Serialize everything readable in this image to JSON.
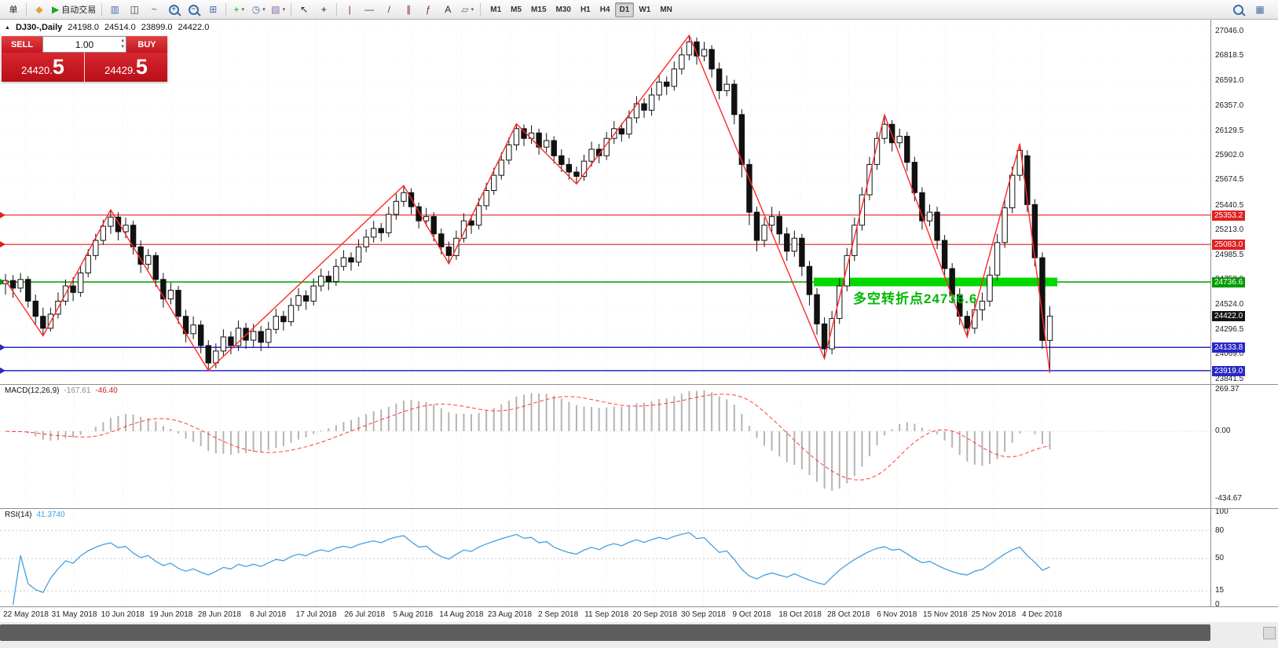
{
  "colors": {
    "line_red": "#e02020",
    "line_green": "#009c00",
    "band_green": "#00d800",
    "line_blue": "#2828c8",
    "badge_black": "#141414",
    "zigzag": "#ff2a2a",
    "macd_hist": "#b4b4b4",
    "macd_signal": "#ff3c3c",
    "rsi_line": "#45a0dc",
    "annotation": "#00b800"
  },
  "toolbar": {
    "dropdown_glyph": "▾",
    "items": [
      {
        "kind": "btn",
        "name": "new-order-button",
        "label": "单"
      },
      {
        "kind": "sep"
      },
      {
        "kind": "btn",
        "name": "mql5-community-icon",
        "glyph": "◆",
        "glyph_color": "#e2a13c"
      },
      {
        "kind": "btn",
        "name": "auto-trading-button",
        "glyph": "▶",
        "glyph_color": "#1fa51f",
        "label": "自动交易"
      },
      {
        "kind": "sep"
      },
      {
        "kind": "btn",
        "name": "bar-chart-mode-icon",
        "glyph": "▥",
        "glyph_color": "#4a6ea9"
      },
      {
        "kind": "btn",
        "name": "candlestick-mode-icon",
        "glyph": "◫",
        "glyph_color": "#333333"
      },
      {
        "kind": "btn",
        "name": "line-chart-mode-icon",
        "glyph": "~",
        "glyph_color": "#2a7a2a"
      },
      {
        "kind": "mag",
        "name": "zoom-in-icon",
        "sign": "+"
      },
      {
        "kind": "mag",
        "name": "zoom-out-icon",
        "sign": "−"
      },
      {
        "kind": "btn",
        "name": "tile-windows-icon",
        "glyph": "⊞",
        "glyph_color": "#4a6ea9"
      },
      {
        "kind": "sep"
      },
      {
        "kind": "btn",
        "name": "indicators-icon",
        "glyph": "+",
        "glyph_color": "#18a018",
        "drop": true
      },
      {
        "kind": "btn",
        "name": "time-periods-icon",
        "glyph": "◷",
        "glyph_color": "#4a6ea9",
        "drop": true
      },
      {
        "kind": "btn",
        "name": "templates-icon",
        "glyph": "▧",
        "glyph_color": "#8a6ea9",
        "drop": true
      },
      {
        "kind": "sep"
      },
      {
        "kind": "btn",
        "name": "cursor-icon",
        "glyph": "↖",
        "glyph_color": "#222222"
      },
      {
        "kind": "btn",
        "name": "crosshair-icon",
        "glyph": "+",
        "glyph_color": "#222222"
      },
      {
        "kind": "sep"
      },
      {
        "kind": "btn",
        "name": "vertical-line-icon",
        "glyph": "|",
        "glyph_color": "#8a2a2a"
      },
      {
        "kind": "btn",
        "name": "horizontal-line-icon",
        "glyph": "—",
        "glyph_color": "#8a2a2a"
      },
      {
        "kind": "btn",
        "name": "trendline-icon",
        "glyph": "/",
        "glyph_color": "#8a2a2a"
      },
      {
        "kind": "btn",
        "name": "equidistant-channel-icon",
        "glyph": "∥",
        "glyph_color": "#8a2a2a"
      },
      {
        "kind": "btn",
        "name": "fibonacci-icon",
        "glyph": "ƒ",
        "glyph_color": "#8a2a2a"
      },
      {
        "kind": "btn",
        "name": "text-tool-icon",
        "glyph": "A",
        "glyph_color": "#222222"
      },
      {
        "kind": "btn",
        "name": "shapes-icon",
        "glyph": "▱",
        "glyph_color": "#4a6ea9",
        "drop": true
      },
      {
        "kind": "sep"
      }
    ],
    "timeframes": [
      {
        "label": "M1"
      },
      {
        "label": "M5"
      },
      {
        "label": "M15"
      },
      {
        "label": "M30"
      },
      {
        "label": "H1"
      },
      {
        "label": "H4"
      },
      {
        "label": "D1",
        "active": true
      },
      {
        "label": "W1"
      },
      {
        "label": "MN"
      }
    ],
    "right_items": [
      {
        "kind": "mag",
        "name": "search-icon",
        "sign": ""
      },
      {
        "kind": "btn",
        "name": "window-layout-icon",
        "glyph": "▦",
        "glyph_color": "#4a6ea9"
      }
    ]
  },
  "symbol_header": {
    "marker": "▲",
    "symbol": "DJ30-,Daily",
    "open": "24198.0",
    "high": "24514.0",
    "low": "23899.0",
    "close": "24422.0"
  },
  "trade_panel": {
    "sell_label": "SELL",
    "buy_label": "BUY",
    "volume": "1.00",
    "spinner_up": "▴",
    "spinner_down": "▾",
    "sell_price_small": "24420.",
    "sell_price_big": "5",
    "buy_price_small": "24429.",
    "buy_price_big": "5"
  },
  "annotation": {
    "text": "多空转折点24736.6"
  },
  "indicators": {
    "macd": {
      "name": "MACD(12,26,9)",
      "main_value": "-167.61",
      "signal_value": "-46.40",
      "axis_labels": [
        "269.37",
        "0.00",
        "-434.67"
      ]
    },
    "rsi": {
      "name": "RSI(14)",
      "value": "41.3740",
      "axis_labels": [
        "100",
        "80",
        "50",
        "15",
        "0"
      ],
      "levels": [
        80,
        50,
        15
      ]
    }
  },
  "chart_data": {
    "type": "candlestick",
    "symbol": "DJ30-",
    "timeframe": "Daily",
    "ohlc_current": {
      "open": 24198.0,
      "high": 24514.0,
      "low": 23899.0,
      "close": 24422.0
    },
    "current_price": {
      "value": 24422.0,
      "label": "24422.0"
    },
    "price_axis": {
      "labels": [
        "27046.0",
        "26818.5",
        "26591.0",
        "26357.0",
        "26129.5",
        "25902.0",
        "25674.5",
        "25440.5",
        "25213.0",
        "24985.5",
        "24758.0",
        "24524.0",
        "24296.5",
        "24069.0",
        "23841.5"
      ]
    },
    "date_axis": {
      "labels": [
        "22 May 2018",
        "31 May 2018",
        "10 Jun 2018",
        "19 Jun 2018",
        "28 Jun 2018",
        "8 Jul 2018",
        "17 Jul 2018",
        "26 Jul 2018",
        "5 Aug 2018",
        "14 Aug 2018",
        "23 Aug 2018",
        "2 Sep 2018",
        "11 Sep 2018",
        "20 Sep 2018",
        "30 Sep 2018",
        "9 Oct 2018",
        "18 Oct 2018",
        "28 Oct 2018",
        "6 Nov 2018",
        "15 Nov 2018",
        "25 Nov 2018",
        "4 Dec 2018"
      ]
    },
    "hlines": [
      {
        "price": 25353.2,
        "label": "25353.2",
        "color": "red"
      },
      {
        "price": 25083.0,
        "label": "25083.0",
        "color": "red"
      },
      {
        "price": 24736.6,
        "label": "24736.6",
        "color": "green",
        "band": {
          "from_index": 108,
          "to_index": 140
        }
      },
      {
        "price": 24133.8,
        "label": "24133.8",
        "color": "blue"
      },
      {
        "price": 23919.0,
        "label": "23919.0",
        "color": "blue"
      }
    ],
    "zigzag": [
      [
        0,
        24750
      ],
      [
        5,
        24240
      ],
      [
        14,
        25402
      ],
      [
        27,
        23920
      ],
      [
        53,
        25625
      ],
      [
        59,
        24905
      ],
      [
        68,
        26195
      ],
      [
        76,
        25640
      ],
      [
        91,
        27010
      ],
      [
        109,
        24030
      ],
      [
        117,
        26277
      ],
      [
        128,
        24230
      ],
      [
        135,
        26012
      ],
      [
        139,
        23899
      ]
    ],
    "candles": [
      [
        24720,
        24810,
        24620,
        24750
      ],
      [
        24750,
        24800,
        24590,
        24680
      ],
      [
        24680,
        24820,
        24640,
        24760
      ],
      [
        24760,
        24790,
        24500,
        24560
      ],
      [
        24560,
        24620,
        24340,
        24420
      ],
      [
        24420,
        24500,
        24240,
        24310
      ],
      [
        24310,
        24500,
        24280,
        24440
      ],
      [
        24440,
        24640,
        24400,
        24560
      ],
      [
        24560,
        24760,
        24520,
        24700
      ],
      [
        24700,
        24780,
        24560,
        24640
      ],
      [
        24640,
        24880,
        24600,
        24820
      ],
      [
        24820,
        25040,
        24780,
        24980
      ],
      [
        24980,
        25180,
        24940,
        25120
      ],
      [
        25120,
        25310,
        25080,
        25250
      ],
      [
        25250,
        25402,
        25180,
        25335
      ],
      [
        25335,
        25380,
        25120,
        25200
      ],
      [
        25200,
        25330,
        25140,
        25260
      ],
      [
        25260,
        25300,
        24990,
        25060
      ],
      [
        25060,
        25120,
        24820,
        24900
      ],
      [
        24900,
        25040,
        24850,
        24980
      ],
      [
        24980,
        25010,
        24690,
        24760
      ],
      [
        24760,
        24820,
        24500,
        24580
      ],
      [
        24580,
        24730,
        24530,
        24660
      ],
      [
        24660,
        24700,
        24350,
        24420
      ],
      [
        24420,
        24480,
        24180,
        24260
      ],
      [
        24260,
        24420,
        24210,
        24340
      ],
      [
        24340,
        24380,
        24080,
        24150
      ],
      [
        24150,
        24200,
        23920,
        23990
      ],
      [
        23990,
        24170,
        23940,
        24100
      ],
      [
        24100,
        24300,
        24050,
        24230
      ],
      [
        24230,
        24280,
        24070,
        24150
      ],
      [
        24150,
        24380,
        24100,
        24310
      ],
      [
        24310,
        24360,
        24120,
        24200
      ],
      [
        24200,
        24350,
        24140,
        24280
      ],
      [
        24280,
        24330,
        24100,
        24180
      ],
      [
        24180,
        24370,
        24130,
        24300
      ],
      [
        24300,
        24490,
        24260,
        24420
      ],
      [
        24420,
        24470,
        24290,
        24370
      ],
      [
        24370,
        24590,
        24330,
        24520
      ],
      [
        24520,
        24680,
        24470,
        24610
      ],
      [
        24610,
        24660,
        24480,
        24560
      ],
      [
        24560,
        24770,
        24520,
        24700
      ],
      [
        24700,
        24860,
        24650,
        24790
      ],
      [
        24790,
        24840,
        24660,
        24740
      ],
      [
        24740,
        24950,
        24700,
        24880
      ],
      [
        24880,
        25030,
        24840,
        24960
      ],
      [
        24960,
        25010,
        24840,
        24920
      ],
      [
        24920,
        25130,
        24880,
        25060
      ],
      [
        25060,
        25220,
        25010,
        25150
      ],
      [
        25150,
        25300,
        25100,
        25230
      ],
      [
        25230,
        25280,
        25110,
        25190
      ],
      [
        25190,
        25430,
        25150,
        25360
      ],
      [
        25360,
        25550,
        25310,
        25480
      ],
      [
        25480,
        25625,
        25430,
        25560
      ],
      [
        25560,
        25600,
        25360,
        25430
      ],
      [
        25430,
        25470,
        25230,
        25300
      ],
      [
        25300,
        25420,
        25250,
        25340
      ],
      [
        25340,
        25380,
        25110,
        25180
      ],
      [
        25180,
        25230,
        24990,
        25060
      ],
      [
        25060,
        25110,
        24905,
        24980
      ],
      [
        24980,
        25210,
        24940,
        25140
      ],
      [
        25140,
        25370,
        25100,
        25300
      ],
      [
        25300,
        25350,
        25180,
        25260
      ],
      [
        25260,
        25510,
        25220,
        25440
      ],
      [
        25440,
        25650,
        25400,
        25580
      ],
      [
        25580,
        25790,
        25540,
        25720
      ],
      [
        25720,
        25930,
        25680,
        25860
      ],
      [
        25860,
        26070,
        25820,
        26000
      ],
      [
        26000,
        26195,
        25950,
        26150
      ],
      [
        26150,
        26190,
        25990,
        26060
      ],
      [
        26060,
        26180,
        26010,
        26110
      ],
      [
        26110,
        26150,
        25910,
        25980
      ],
      [
        25980,
        26110,
        25930,
        26040
      ],
      [
        26040,
        26080,
        25830,
        25900
      ],
      [
        25900,
        25960,
        25750,
        25820
      ],
      [
        25820,
        25880,
        25680,
        25750
      ],
      [
        25750,
        25800,
        25640,
        25710
      ],
      [
        25710,
        25910,
        25670,
        25850
      ],
      [
        25850,
        26030,
        25800,
        25960
      ],
      [
        25960,
        26010,
        25830,
        25900
      ],
      [
        25900,
        26120,
        25860,
        26060
      ],
      [
        26060,
        26220,
        26010,
        26150
      ],
      [
        26150,
        26200,
        26030,
        26100
      ],
      [
        26100,
        26320,
        26060,
        26250
      ],
      [
        26250,
        26450,
        26200,
        26380
      ],
      [
        26380,
        26430,
        26250,
        26320
      ],
      [
        26320,
        26530,
        26270,
        26460
      ],
      [
        26460,
        26650,
        26410,
        26580
      ],
      [
        26580,
        26630,
        26460,
        26540
      ],
      [
        26540,
        26770,
        26500,
        26700
      ],
      [
        26700,
        26900,
        26650,
        26830
      ],
      [
        26830,
        27010,
        26780,
        26950
      ],
      [
        26950,
        26990,
        26740,
        26820
      ],
      [
        26820,
        26950,
        26770,
        26880
      ],
      [
        26880,
        26920,
        26620,
        26700
      ],
      [
        26700,
        26760,
        26420,
        26500
      ],
      [
        26500,
        26640,
        26450,
        26560
      ],
      [
        26560,
        26600,
        26190,
        26280
      ],
      [
        26280,
        26330,
        25700,
        25820
      ],
      [
        25820,
        25870,
        25260,
        25380
      ],
      [
        25380,
        25430,
        25020,
        25120
      ],
      [
        25120,
        25330,
        25060,
        25260
      ],
      [
        25260,
        25430,
        25200,
        25340
      ],
      [
        25340,
        25390,
        25090,
        25180
      ],
      [
        25180,
        25240,
        24930,
        25020
      ],
      [
        25020,
        25210,
        24970,
        25140
      ],
      [
        25140,
        25180,
        24790,
        24880
      ],
      [
        24880,
        24930,
        24520,
        24620
      ],
      [
        24620,
        24680,
        24250,
        24350
      ],
      [
        24350,
        24410,
        24030,
        24120
      ],
      [
        24120,
        24470,
        24070,
        24400
      ],
      [
        24400,
        24770,
        24350,
        24700
      ],
      [
        24700,
        25050,
        24650,
        24980
      ],
      [
        24980,
        25330,
        24930,
        25260
      ],
      [
        25260,
        25610,
        25210,
        25540
      ],
      [
        25540,
        25890,
        25490,
        25820
      ],
      [
        25820,
        26120,
        25770,
        26060
      ],
      [
        26060,
        26277,
        26010,
        26190
      ],
      [
        26190,
        26230,
        25940,
        26020
      ],
      [
        26020,
        26150,
        25970,
        26080
      ],
      [
        26080,
        26120,
        25760,
        25840
      ],
      [
        25840,
        25890,
        25480,
        25560
      ],
      [
        25560,
        25610,
        25220,
        25300
      ],
      [
        25300,
        25450,
        25250,
        25380
      ],
      [
        25380,
        25430,
        25040,
        25120
      ],
      [
        25120,
        25170,
        24780,
        24860
      ],
      [
        24860,
        24910,
        24540,
        24620
      ],
      [
        24620,
        24680,
        24340,
        24420
      ],
      [
        24420,
        24470,
        24230,
        24310
      ],
      [
        24310,
        24550,
        24260,
        24480
      ],
      [
        24480,
        24640,
        24380,
        24560
      ],
      [
        24560,
        24880,
        24510,
        24800
      ],
      [
        24800,
        25180,
        24750,
        25100
      ],
      [
        25100,
        25500,
        25050,
        25420
      ],
      [
        25420,
        25800,
        25370,
        25720
      ],
      [
        25720,
        26012,
        25670,
        25950
      ],
      [
        25900,
        25950,
        25380,
        25450
      ],
      [
        25450,
        25500,
        24880,
        24960
      ],
      [
        24960,
        25010,
        24120,
        24198
      ],
      [
        24198,
        24514,
        23899,
        24422
      ]
    ],
    "macd_current": [
      -167.61,
      -46.4
    ],
    "rsi_current": 41.374
  }
}
